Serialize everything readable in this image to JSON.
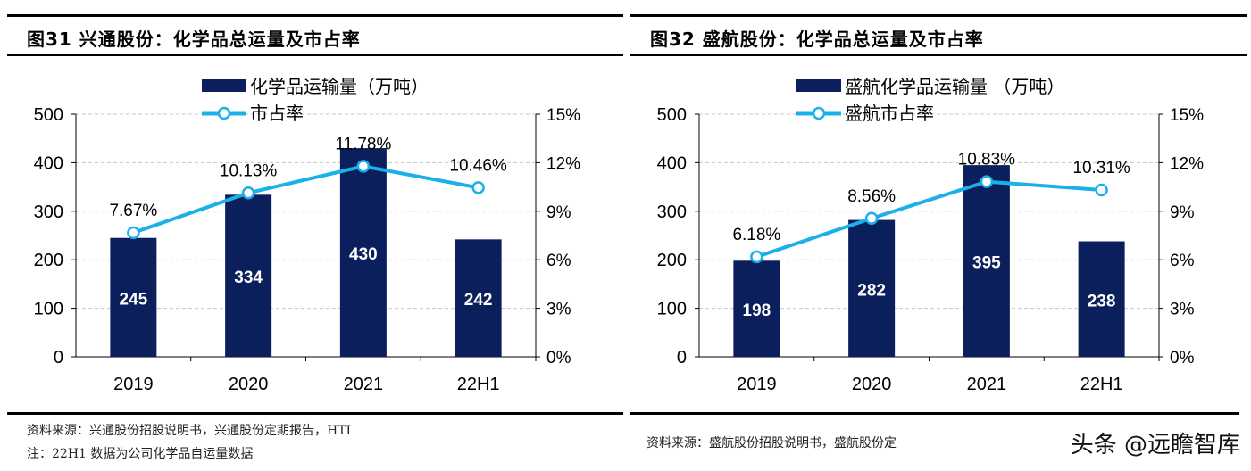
{
  "colors": {
    "bar": "#0b1f5c",
    "line": "#1bb0ea",
    "grid": "#c8c8c8"
  },
  "watermark": "头条 @远瞻智库",
  "chart_data": [
    {
      "type": "bar+line",
      "title": "图31  兴通股份：化学品总运量及市占率",
      "categories": [
        "2019",
        "2020",
        "2021",
        "22H1"
      ],
      "series": [
        {
          "name": "化学品运输量（万吨）",
          "type": "bar",
          "axis": "left",
          "values": [
            245,
            334,
            430,
            242
          ],
          "labels": [
            "245",
            "334",
            "430",
            "242"
          ]
        },
        {
          "name": "市占率",
          "type": "line",
          "axis": "right",
          "values": [
            7.67,
            10.13,
            11.78,
            10.46
          ],
          "labels": [
            "7.67%",
            "10.13%",
            "11.78%",
            "10.46%"
          ]
        }
      ],
      "ylim": [
        0,
        500
      ],
      "yticks": [
        "0",
        "100",
        "200",
        "300",
        "400",
        "500"
      ],
      "y2lim": [
        0,
        15
      ],
      "y2ticks": [
        "0%",
        "3%",
        "6%",
        "9%",
        "12%",
        "15%"
      ],
      "grid": true,
      "legend": "top-center",
      "notes": [
        "资料来源：兴通股份招股说明书，兴通股份定期报告，HTI",
        "注：22H1 数据为公司化学品自运量数据"
      ]
    },
    {
      "type": "bar+line",
      "title": "图32   盛航股份：化学品总运量及市占率",
      "categories": [
        "2019",
        "2020",
        "2021",
        "22H1"
      ],
      "series": [
        {
          "name": "盛航化学品运输量 （万吨）",
          "type": "bar",
          "axis": "left",
          "values": [
            198,
            282,
            395,
            238
          ],
          "labels": [
            "198",
            "282",
            "395",
            "238"
          ]
        },
        {
          "name": "盛航市占率",
          "type": "line",
          "axis": "right",
          "values": [
            6.18,
            8.56,
            10.83,
            10.31
          ],
          "labels": [
            "6.18%",
            "8.56%",
            "10.83%",
            "10.31%"
          ]
        }
      ],
      "ylim": [
        0,
        500
      ],
      "yticks": [
        "0",
        "100",
        "200",
        "300",
        "400",
        "500"
      ],
      "y2lim": [
        0,
        15
      ],
      "y2ticks": [
        "0%",
        "3%",
        "6%",
        "9%",
        "12%",
        "15%"
      ],
      "grid": true,
      "legend": "top-center",
      "notes": [
        "资料来源：盛航股份招股说明书，盛航股份定"
      ]
    }
  ]
}
